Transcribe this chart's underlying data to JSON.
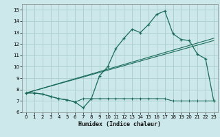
{
  "title": "",
  "xlabel": "Humidex (Indice chaleur)",
  "background_color": "#cce8ea",
  "grid_color": "#aacccc",
  "line_color": "#1a6b5a",
  "xlim": [
    -0.5,
    23.5
  ],
  "ylim": [
    6,
    15.5
  ],
  "xticks": [
    0,
    1,
    2,
    3,
    4,
    5,
    6,
    7,
    8,
    9,
    10,
    11,
    12,
    13,
    14,
    15,
    16,
    17,
    18,
    19,
    20,
    21,
    22,
    23
  ],
  "yticks": [
    6,
    7,
    8,
    9,
    10,
    11,
    12,
    13,
    14,
    15
  ],
  "series1_x": [
    0,
    1,
    2,
    3,
    4,
    5,
    6,
    7,
    8,
    9,
    10,
    11,
    12,
    13,
    14,
    15,
    16,
    17,
    18,
    19,
    20,
    21,
    22,
    23
  ],
  "series1_y": [
    7.7,
    7.7,
    7.6,
    7.4,
    7.2,
    7.1,
    6.9,
    6.4,
    7.2,
    9.2,
    10.0,
    11.6,
    12.5,
    13.3,
    13.0,
    13.7,
    14.6,
    14.9,
    12.9,
    12.4,
    12.3,
    11.1,
    10.7,
    7.0
  ],
  "series2_x": [
    0,
    23
  ],
  "series2_y": [
    7.7,
    12.5
  ],
  "series3_x": [
    0,
    23
  ],
  "series3_y": [
    7.7,
    12.3
  ],
  "series4_x": [
    0,
    1,
    2,
    3,
    4,
    5,
    6,
    7,
    8,
    9,
    10,
    11,
    12,
    13,
    14,
    15,
    16,
    17,
    18,
    19,
    20,
    21,
    22,
    23
  ],
  "series4_y": [
    7.7,
    7.7,
    7.6,
    7.4,
    7.2,
    7.1,
    6.9,
    7.2,
    7.2,
    7.2,
    7.2,
    7.2,
    7.2,
    7.2,
    7.2,
    7.2,
    7.2,
    7.2,
    7.0,
    7.0,
    7.0,
    7.0,
    7.0,
    7.0
  ]
}
